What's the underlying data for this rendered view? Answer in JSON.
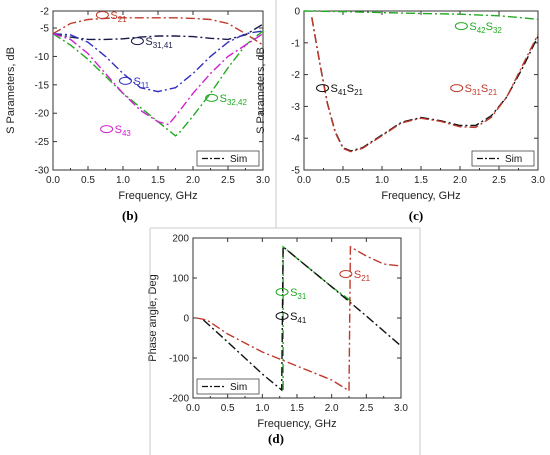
{
  "chart_data": [
    {
      "id": "b",
      "type": "line",
      "panel_label": "(b)",
      "xlabel": "Frequency, GHz",
      "ylabel": "S Parameters, dB",
      "xlim": [
        0,
        3
      ],
      "ylim": [
        -30,
        -2
      ],
      "xticks": [
        "0.0",
        "0.5",
        "1.0",
        "1.5",
        "2.0",
        "2.5",
        "3.0"
      ],
      "yticks": [
        "-2",
        "-5",
        "-10",
        "-15",
        "-20",
        "-25",
        "-30"
      ],
      "legend": {
        "label": "Sim",
        "position": "bottom-right"
      },
      "series": [
        {
          "name": "S21",
          "color": "#c0392b",
          "x": [
            0,
            0.25,
            0.5,
            0.75,
            1.0,
            1.25,
            1.5,
            1.75,
            2.0,
            2.25,
            2.5,
            2.75,
            3.0
          ],
          "y": [
            -6.0,
            -4.2,
            -3.5,
            -3.3,
            -3.2,
            -3.2,
            -3.2,
            -3.2,
            -3.3,
            -3.5,
            -4.2,
            -6.0,
            -8.0
          ]
        },
        {
          "name": "S31,41",
          "color": "#1a1a4a",
          "x": [
            0,
            0.25,
            0.5,
            0.75,
            1.0,
            1.25,
            1.5,
            1.75,
            2.0,
            2.25,
            2.5,
            2.75,
            3.0
          ],
          "y": [
            -6.0,
            -6.6,
            -7.0,
            -7.0,
            -6.9,
            -6.6,
            -6.4,
            -6.4,
            -6.5,
            -6.8,
            -7.0,
            -6.2,
            -4.3
          ]
        },
        {
          "name": "S11",
          "color": "#3030c0",
          "x": [
            0,
            0.25,
            0.5,
            0.75,
            1.0,
            1.25,
            1.5,
            1.75,
            2.0,
            2.25,
            2.5,
            2.75,
            3.0
          ],
          "y": [
            -6.0,
            -6.2,
            -7.5,
            -10.0,
            -13.0,
            -15.5,
            -16.2,
            -15.5,
            -13.0,
            -10.0,
            -7.5,
            -6.0,
            -5.5
          ]
        },
        {
          "name": "S32,42",
          "color": "#22aa22",
          "x": [
            0,
            0.25,
            0.5,
            0.75,
            1.0,
            1.25,
            1.5,
            1.75,
            1.8,
            2.0,
            2.25,
            2.5,
            2.75,
            3.0
          ],
          "y": [
            -6.0,
            -8.0,
            -10.5,
            -13.5,
            -16.5,
            -19.0,
            -21.5,
            -24.0,
            -23.5,
            -20.5,
            -16.5,
            -12.0,
            -8.0,
            -5.5
          ]
        },
        {
          "name": "S43",
          "color": "#d020d0",
          "x": [
            0,
            0.25,
            0.5,
            0.75,
            1.0,
            1.25,
            1.5,
            1.65,
            1.75,
            2.0,
            2.25,
            2.5,
            2.75,
            3.0
          ],
          "y": [
            -6.0,
            -7.0,
            -9.5,
            -13.0,
            -16.5,
            -19.5,
            -21.5,
            -22.0,
            -20.5,
            -16.5,
            -13.0,
            -10.0,
            -8.0,
            -6.0
          ]
        }
      ],
      "annotations": [
        {
          "main": "S",
          "sub": "21",
          "color": "#c0392b",
          "x": 0.82,
          "y": -3.4
        },
        {
          "main": "S",
          "sub": "31,41",
          "color": "#1a1a4a",
          "x": 1.32,
          "y": -8.0
        },
        {
          "main": "S",
          "sub": "11",
          "color": "#3030c0",
          "x": 1.15,
          "y": -15.0
        },
        {
          "main": "S",
          "sub": "32,42",
          "color": "#22aa22",
          "x": 2.38,
          "y": -18.0
        },
        {
          "main": "S",
          "sub": "43",
          "color": "#d020d0",
          "x": 0.88,
          "y": -23.5
        }
      ]
    },
    {
      "id": "c",
      "type": "line",
      "panel_label": "(c)",
      "xlabel": "Frequency, GHz",
      "ylabel": "S Parameters, dB",
      "xlim": [
        0,
        3
      ],
      "ylim": [
        -5,
        0
      ],
      "xticks": [
        "0.0",
        "0.5",
        "1.0",
        "1.5",
        "2.0",
        "2.5",
        "3.0"
      ],
      "yticks": [
        "0",
        "-1",
        "-2",
        "-3",
        "-4",
        "-5"
      ],
      "legend": {
        "label": "Sim",
        "position": "bottom-right"
      },
      "series": [
        {
          "name": "S42S32",
          "color": "#22aa22",
          "x": [
            0,
            0.5,
            1.0,
            1.5,
            2.0,
            2.5,
            2.75,
            3.0
          ],
          "y": [
            0.0,
            -0.02,
            -0.05,
            -0.08,
            -0.1,
            -0.15,
            -0.2,
            -0.26
          ]
        },
        {
          "name": "S41S21",
          "color": "#111111",
          "x": [
            0.1,
            0.2,
            0.3,
            0.4,
            0.5,
            0.6,
            0.75,
            1.0,
            1.25,
            1.5,
            1.75,
            2.0,
            2.2,
            2.4,
            2.6,
            2.8,
            3.0
          ],
          "y": [
            -0.2,
            -1.6,
            -2.9,
            -3.8,
            -4.3,
            -4.4,
            -4.3,
            -3.9,
            -3.5,
            -3.35,
            -3.45,
            -3.6,
            -3.6,
            -3.3,
            -2.7,
            -1.8,
            -0.8
          ]
        },
        {
          "name": "S31S21",
          "color": "#c0392b",
          "x": [
            0.1,
            0.2,
            0.3,
            0.4,
            0.5,
            0.6,
            0.75,
            1.0,
            1.25,
            1.5,
            1.75,
            2.0,
            2.2,
            2.4,
            2.6,
            2.8,
            3.0
          ],
          "y": [
            -0.2,
            -1.62,
            -2.92,
            -3.82,
            -4.32,
            -4.42,
            -4.32,
            -3.92,
            -3.52,
            -3.37,
            -3.47,
            -3.64,
            -3.66,
            -3.35,
            -2.7,
            -1.72,
            -0.74
          ]
        }
      ],
      "annotations": [
        {
          "main": "S",
          "sub": "41",
          "main2": "S",
          "sub2": "21",
          "color": "#111111",
          "x": 0.34,
          "y": -2.55
        },
        {
          "main": "S",
          "sub": "42",
          "main2": "S",
          "sub2": "32",
          "color": "#22aa22",
          "x": 2.12,
          "y": -0.6
        },
        {
          "main": "S",
          "sub": "31",
          "main2": "S",
          "sub2": "21",
          "color": "#c0392b",
          "x": 2.06,
          "y": -2.55
        }
      ]
    },
    {
      "id": "d",
      "type": "line",
      "panel_label": "(d)",
      "xlabel": "Frequency, GHz",
      "ylabel": "Phase angle,  Deg",
      "xlim": [
        0,
        3
      ],
      "ylim": [
        -200,
        200
      ],
      "xticks": [
        "0.0",
        "0.5",
        "1.0",
        "1.5",
        "2.0",
        "2.5",
        "3.0"
      ],
      "yticks": [
        "200",
        "100",
        "0",
        "-100",
        "-200"
      ],
      "legend": {
        "label": "Sim",
        "position": "bottom-left"
      },
      "series": [
        {
          "name": "S31",
          "color": "#22aa22",
          "x": [
            1.3,
            1.3,
            1.6,
            2.0,
            2.3
          ],
          "y": [
            -180,
            178,
            135,
            78,
            40
          ]
        },
        {
          "name": "S41",
          "color": "#111111",
          "x": [
            0.15,
            0.5,
            1.0,
            1.28,
            1.3,
            1.6,
            2.0,
            2.5,
            3.0
          ],
          "y": [
            -5,
            -60,
            -140,
            -180,
            178,
            135,
            78,
            5,
            -70
          ]
        },
        {
          "name": "S21",
          "color": "#c0392b",
          "x": [
            0.05,
            0.2,
            0.5,
            1.0,
            1.5,
            2.0,
            2.25,
            2.27,
            2.5,
            2.75,
            3.0
          ],
          "y": [
            0,
            -5,
            -40,
            -85,
            -120,
            -155,
            -182,
            178,
            155,
            135,
            130
          ]
        }
      ],
      "annotations": [
        {
          "main": "S",
          "sub": "21",
          "color": "#c0392b",
          "x": 2.32,
          "y": 100
        },
        {
          "main": "S",
          "sub": "31",
          "color": "#22aa22",
          "x": 1.4,
          "y": 55
        },
        {
          "main": "S",
          "sub": "41",
          "color": "#111111",
          "x": 1.4,
          "y": -5
        }
      ]
    }
  ]
}
